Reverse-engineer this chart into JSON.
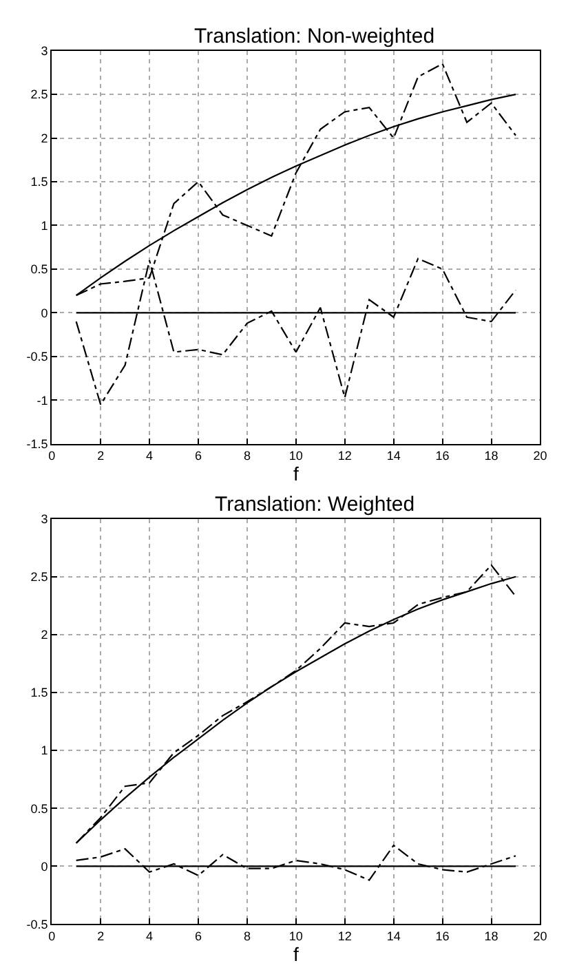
{
  "chart_data": [
    {
      "type": "line",
      "title": "Translation: Non-weighted",
      "xlabel": "f",
      "x": [
        1,
        2,
        3,
        4,
        5,
        6,
        7,
        8,
        9,
        10,
        11,
        12,
        13,
        14,
        15,
        16,
        17,
        18,
        19
      ],
      "series": [
        {
          "color": "#000000",
          "line_style": "solid",
          "values": [
            0.2,
            0.4,
            0.59,
            0.77,
            0.94,
            1.1,
            1.26,
            1.41,
            1.55,
            1.68,
            1.8,
            1.92,
            2.03,
            2.13,
            2.22,
            2.3,
            2.37,
            2.44,
            2.5
          ]
        },
        {
          "color": "#000000",
          "line_style": "dashed",
          "values": [
            0.2,
            0.33,
            0.36,
            0.4,
            1.25,
            1.5,
            1.12,
            1.0,
            0.88,
            1.6,
            2.1,
            2.3,
            2.35,
            2.0,
            2.7,
            2.85,
            2.18,
            2.4,
            2.03
          ]
        },
        {
          "color": "#000000",
          "line_style": "dashed",
          "values": [
            -0.1,
            -1.05,
            -0.6,
            0.6,
            -0.45,
            -0.42,
            -0.48,
            -0.12,
            0.02,
            -0.45,
            0.06,
            -0.97,
            0.15,
            -0.05,
            0.62,
            0.5,
            -0.05,
            -0.1,
            0.26
          ]
        },
        {
          "color": "#000000",
          "line_style": "solid",
          "values": [
            0,
            0,
            0,
            0,
            0,
            0,
            0,
            0,
            0,
            0,
            0,
            0,
            0,
            0,
            0,
            0,
            0,
            0,
            0
          ]
        }
      ],
      "xlim": [
        0,
        20
      ],
      "xticks": [
        0,
        2,
        4,
        6,
        8,
        10,
        12,
        14,
        16,
        18,
        20
      ],
      "ylim": [
        -1.5,
        3
      ],
      "yticks": [
        -1.5,
        -1,
        -0.5,
        0,
        0.5,
        1,
        1.5,
        2,
        2.5,
        3
      ],
      "grid": true
    },
    {
      "type": "line",
      "title": "Translation: Weighted",
      "xlabel": "f",
      "x": [
        1,
        2,
        3,
        4,
        5,
        6,
        7,
        8,
        9,
        10,
        11,
        12,
        13,
        14,
        15,
        16,
        17,
        18,
        19
      ],
      "series": [
        {
          "color": "#000000",
          "line_style": "solid",
          "values": [
            0.2,
            0.4,
            0.59,
            0.77,
            0.94,
            1.1,
            1.26,
            1.41,
            1.55,
            1.68,
            1.8,
            1.92,
            2.03,
            2.13,
            2.22,
            2.3,
            2.37,
            2.44,
            2.5
          ]
        },
        {
          "color": "#000000",
          "line_style": "dashed",
          "values": [
            0.2,
            0.42,
            0.69,
            0.72,
            0.98,
            1.13,
            1.3,
            1.42,
            1.55,
            1.69,
            1.88,
            2.1,
            2.07,
            2.1,
            2.26,
            2.32,
            2.37,
            2.6,
            2.33
          ]
        },
        {
          "color": "#000000",
          "line_style": "dashed",
          "values": [
            0.05,
            0.08,
            0.15,
            -0.05,
            0.02,
            -0.08,
            0.1,
            -0.02,
            -0.02,
            0.05,
            0.02,
            -0.03,
            -0.12,
            0.18,
            0.02,
            -0.03,
            -0.05,
            0.02,
            0.09
          ]
        },
        {
          "color": "#000000",
          "line_style": "solid",
          "values": [
            0,
            0,
            0,
            0,
            0,
            0,
            0,
            0,
            0,
            0,
            0,
            0,
            0,
            0,
            0,
            0,
            0,
            0,
            0
          ]
        }
      ],
      "xlim": [
        0,
        20
      ],
      "xticks": [
        0,
        2,
        4,
        6,
        8,
        10,
        12,
        14,
        16,
        18,
        20
      ],
      "ylim": [
        -0.5,
        3
      ],
      "yticks": [
        -0.5,
        0,
        0.5,
        1,
        1.5,
        2,
        2.5,
        3
      ],
      "grid": true
    }
  ]
}
